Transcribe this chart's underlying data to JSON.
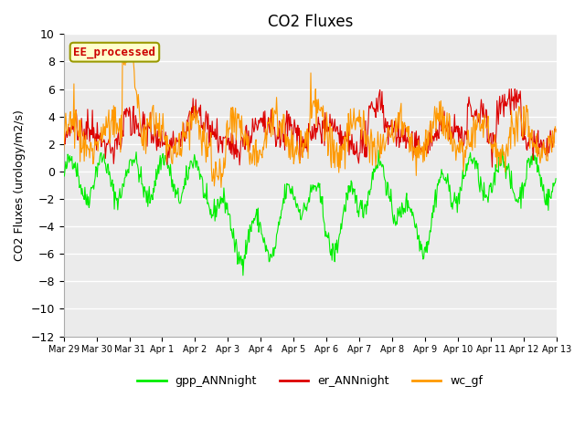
{
  "title": "CO2 Fluxes",
  "ylabel": "CO2 Fluxes (urology/m2/s)",
  "ylim": [
    -12,
    10
  ],
  "yticks": [
    -12,
    -10,
    -8,
    -6,
    -4,
    -2,
    0,
    2,
    4,
    6,
    8,
    10
  ],
  "xtick_labels": [
    "Mar 29",
    "Mar 30",
    "Mar 31",
    "Apr 1",
    "Apr 2",
    "Apr 3",
    "Apr 4",
    "Apr 5",
    "Apr 6",
    "Apr 7",
    "Apr 8",
    "Apr 9",
    "Apr 10",
    "Apr 11",
    "Apr 12",
    "Apr 13"
  ],
  "annotation_text": "EE_processed",
  "annotation_color": "#cc0000",
  "annotation_bg": "#ffffcc",
  "annotation_border": "#999900",
  "gpp_color": "#00ee00",
  "er_color": "#dd0000",
  "wc_color": "#ff9900",
  "legend_labels": [
    "gpp_ANNnight",
    "er_ANNnight",
    "wc_gf"
  ],
  "bg_color": "#ffffff",
  "plot_bg": "#ebebeb",
  "grid_color": "#ffffff",
  "n_points": 720,
  "seed": 42
}
